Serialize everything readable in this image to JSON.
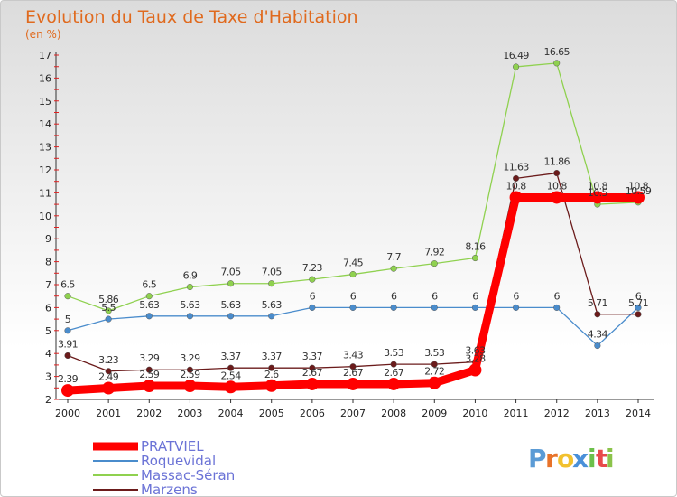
{
  "chart_data": {
    "type": "line",
    "title": "Evolution du Taux de Taxe d'Habitation",
    "subtitle": "(en %)",
    "x": [
      "2000",
      "2001",
      "2002",
      "2003",
      "2004",
      "2005",
      "2006",
      "2007",
      "2008",
      "2009",
      "2010",
      "2011",
      "2012",
      "2013",
      "2014"
    ],
    "ylim": [
      2,
      17
    ],
    "yticks": [
      2,
      3,
      4,
      5,
      6,
      7,
      8,
      9,
      10,
      11,
      12,
      13,
      14,
      15,
      16,
      17
    ],
    "grid": false,
    "legend_position": "bottom-left",
    "series": [
      {
        "name": "PRATVIEL",
        "color": "#ff0000",
        "values": [
          2.39,
          2.49,
          2.59,
          2.59,
          2.54,
          2.6,
          2.67,
          2.67,
          2.67,
          2.72,
          3.28,
          10.8,
          10.8,
          10.8,
          10.8
        ],
        "labels": [
          "2.39",
          "2.49",
          "2.59",
          "2.59",
          "2.54",
          "2.6",
          "2.67",
          "2.67",
          "2.67",
          "2.72",
          "3.28",
          "10.8",
          "10.8",
          "10.8",
          "10.8"
        ]
      },
      {
        "name": "Roquevidal",
        "color": "#4a8ccc",
        "values": [
          5,
          5.5,
          5.63,
          5.63,
          5.63,
          5.63,
          6,
          6,
          6,
          6,
          6,
          6,
          6,
          4.34,
          6
        ],
        "labels": [
          "5",
          "5.5",
          "5.63",
          "5.63",
          "5.63",
          "5.63",
          "6",
          "6",
          "6",
          "6",
          "6",
          "6",
          "6",
          "4.34",
          "6"
        ]
      },
      {
        "name": "Massac-Séran",
        "color": "#8fd14f",
        "values": [
          6.5,
          5.86,
          6.5,
          6.9,
          7.05,
          7.05,
          7.23,
          7.45,
          7.7,
          7.92,
          8.16,
          16.49,
          16.65,
          10.5,
          10.59
        ],
        "labels": [
          "6.5",
          "5.86",
          "6.5",
          "6.9",
          "7.05",
          "7.05",
          "7.23",
          "7.45",
          "7.7",
          "7.92",
          "8.16",
          "16.49",
          "16.65",
          "10.5",
          "10.59"
        ]
      },
      {
        "name": "Marzens",
        "color": "#6b1b1b",
        "values": [
          3.91,
          3.23,
          3.29,
          3.29,
          3.37,
          3.37,
          3.37,
          3.43,
          3.53,
          3.53,
          3.63,
          11.63,
          11.86,
          5.71,
          5.71
        ],
        "labels": [
          "3.91",
          "3.23",
          "3.29",
          "3.29",
          "3.37",
          "3.37",
          "3.37",
          "3.43",
          "3.53",
          "3.53",
          "3.63",
          "11.63",
          "11.86",
          "5.71",
          "5.71"
        ]
      }
    ]
  },
  "logo": {
    "letters": [
      "P",
      "r",
      "o",
      "x",
      "i",
      "t",
      "i"
    ],
    "colors": [
      "#5b9bd5",
      "#e8732a",
      "#f2c12e",
      "#4a90d9",
      "#6cc04a",
      "#e84a4a",
      "#8bc34a"
    ]
  }
}
